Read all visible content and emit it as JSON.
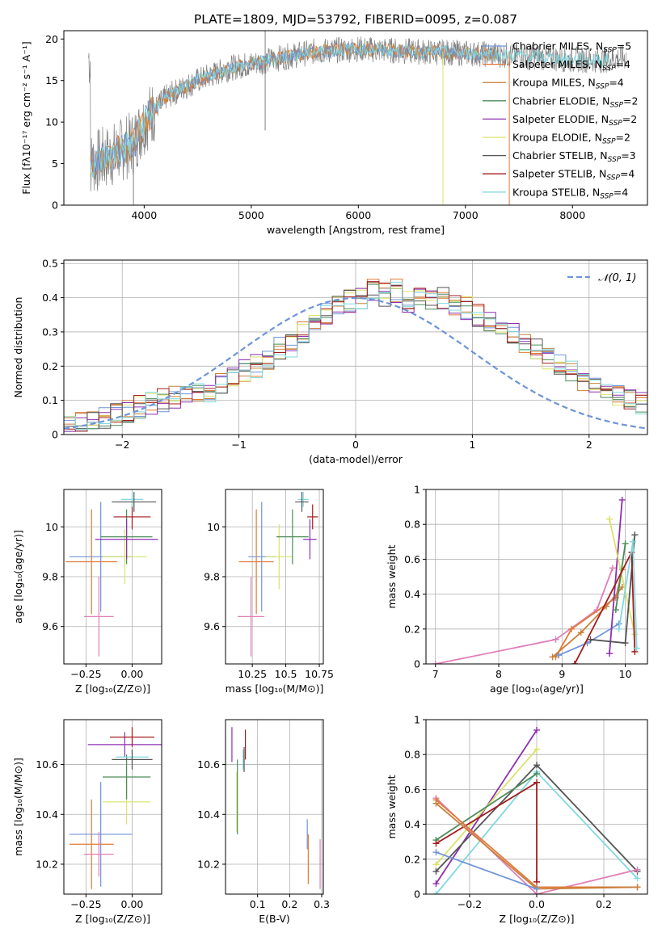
{
  "figure_title": "PLATE=1809, MJD=53792, FIBERID=0095, z=0.087",
  "colors": {
    "Chabrier MILES": "#6f94d8",
    "Salpeter MILES": "#e07b39",
    "Kroupa MILES": "#c8803b",
    "Chabrier ELODIE": "#4c8c59",
    "Salpeter ELODIE": "#8d2fb0",
    "Kroupa ELODIE": "#d9e36a",
    "Chabrier STELIB": "#555555",
    "Salpeter STELIB": "#a51c1c",
    "Kroupa STELIB": "#7fd9df",
    "data": "#808080",
    "pink": "#e07fb8",
    "grid": "#b0b0b0"
  },
  "chart_data": [
    {
      "id": "spectrum",
      "type": "line",
      "xlabel": "wavelength [Angstrom, rest frame]",
      "ylabel": "Flux [fλ10⁻¹⁷ erg cm⁻² s⁻¹ A⁻¹]",
      "xlim": [
        3250,
        8700
      ],
      "ylim": [
        0,
        21
      ],
      "xticks": [
        4000,
        5000,
        6000,
        7000,
        8000
      ],
      "yticks": [
        0,
        5,
        10,
        15,
        20
      ],
      "grid": false,
      "legend_position": "top-right",
      "legend": [
        {
          "label": "Chabrier MILES, N",
          "sub": "SSP",
          "tail": "=5"
        },
        {
          "label": "Salpeter MILES, N",
          "sub": "SSP",
          "tail": "=4"
        },
        {
          "label": "Kroupa MILES, N",
          "sub": "SSP",
          "tail": "=4"
        },
        {
          "label": "Chabrier ELODIE, N",
          "sub": "SSP",
          "tail": "=2"
        },
        {
          "label": "Salpeter ELODIE, N",
          "sub": "SSP",
          "tail": "=2"
        },
        {
          "label": "Kroupa ELODIE, N",
          "sub": "SSP",
          "tail": "=2"
        },
        {
          "label": "Chabrier STELIB, N",
          "sub": "SSP",
          "tail": "=3"
        },
        {
          "label": "Salpeter STELIB, N",
          "sub": "SSP",
          "tail": "=4"
        },
        {
          "label": "Kroupa STELIB, N",
          "sub": "SSP",
          "tail": "=4"
        }
      ],
      "continuum": {
        "x": [
          3500,
          3700,
          3900,
          4000,
          4200,
          4500,
          4800,
          5000,
          5300,
          5600,
          6000,
          6500,
          7000,
          7500,
          8000,
          8300,
          8500
        ],
        "y": [
          5,
          6,
          7.5,
          10,
          13,
          15,
          16.5,
          17,
          17.8,
          18.5,
          18.8,
          18.5,
          18.3,
          18,
          17.5,
          17.5,
          17.8
        ]
      },
      "spikes": [
        {
          "x": 5130,
          "y0": 9,
          "y1": 21
        },
        {
          "x": 6790,
          "y0": 0,
          "y1": 18.5
        },
        {
          "x": 7410,
          "y0": 0,
          "y1": 18.5
        },
        {
          "x": 3900,
          "y0": 0,
          "y1": 7
        }
      ]
    },
    {
      "id": "residuals",
      "type": "histogram",
      "xlabel": "(data-model)/error",
      "ylabel": "Normed distribution",
      "xlim": [
        -2.5,
        2.5
      ],
      "ylim": [
        0,
        0.51
      ],
      "xticks": [
        -2,
        -1,
        0,
        1,
        2
      ],
      "yticks": [
        0.0,
        0.1,
        0.2,
        0.3,
        0.4,
        0.5
      ],
      "grid": true,
      "legend": "𝒩(0, 1)",
      "bin_width": 0.1,
      "bin_start": -2.5,
      "hist_values": [
        0.03,
        0.03,
        0.04,
        0.05,
        0.06,
        0.07,
        0.08,
        0.09,
        0.1,
        0.11,
        0.11,
        0.12,
        0.13,
        0.15,
        0.17,
        0.19,
        0.2,
        0.22,
        0.25,
        0.26,
        0.3,
        0.32,
        0.35,
        0.37,
        0.39,
        0.4,
        0.42,
        0.41,
        0.42,
        0.39,
        0.4,
        0.39,
        0.4,
        0.38,
        0.37,
        0.35,
        0.33,
        0.31,
        0.29,
        0.27,
        0.25,
        0.22,
        0.2,
        0.18,
        0.16,
        0.15,
        0.13,
        0.12,
        0.1,
        0.09,
        0.08,
        0.07,
        0.06,
        0.05,
        0.05,
        0.04,
        0.04,
        0.03,
        0.03,
        0.03
      ],
      "jitter_seeds": [
        1,
        2,
        3,
        4,
        5,
        6,
        7,
        8,
        9
      ]
    },
    {
      "id": "z_age",
      "type": "errorbar",
      "xlabel": "Z [log₁₀(Z/Z⊙)]",
      "ylabel": "age  [log₁₀(age/yr)]",
      "xlim": [
        -0.37,
        0.16
      ],
      "ylim": [
        9.45,
        10.15
      ],
      "xticks": [
        -0.25,
        0.0
      ],
      "xticklabels": [
        "−0.25",
        "0.00"
      ],
      "yticks": [
        9.6,
        9.8,
        10.0
      ],
      "grid": true,
      "points": [
        {
          "series": "Chabrier MILES",
          "x": -0.17,
          "xerr": 0.17,
          "y": 9.88,
          "yerr": 0.22
        },
        {
          "series": "Salpeter MILES",
          "x": -0.22,
          "xerr": 0.14,
          "y": 9.86,
          "yerr": 0.21
        },
        {
          "series": "pink",
          "x": -0.18,
          "xerr": 0.08,
          "y": 9.64,
          "yerr": 0.16
        },
        {
          "series": "Kroupa ELODIE",
          "x": -0.04,
          "xerr": 0.12,
          "y": 9.88,
          "yerr": 0.11
        },
        {
          "series": "Chabrier ELODIE",
          "x": -0.03,
          "xerr": 0.14,
          "y": 9.96,
          "yerr": 0.11
        },
        {
          "series": "Salpeter ELODIE",
          "x": -0.03,
          "xerr": 0.17,
          "y": 9.95,
          "yerr": 0.08
        },
        {
          "series": "Salpeter STELIB",
          "x": 0.0,
          "xerr": 0.1,
          "y": 10.04,
          "yerr": 0.05
        },
        {
          "series": "Kroupa STELIB",
          "x": 0.0,
          "xerr": 0.06,
          "y": 10.11,
          "yerr": 0.03
        },
        {
          "series": "Chabrier STELIB",
          "x": 0.01,
          "xerr": 0.12,
          "y": 10.1,
          "yerr": 0.04
        }
      ]
    },
    {
      "id": "mass_age",
      "type": "errorbar",
      "xlabel": "mass [log₁₀(M/M⊙)]",
      "ylabel": "",
      "xlim": [
        10.05,
        10.78
      ],
      "ylim": [
        9.45,
        10.15
      ],
      "xticks": [
        10.25,
        10.5,
        10.75
      ],
      "yticks": [
        9.6,
        9.8,
        10.0
      ],
      "grid": true,
      "points": [
        {
          "series": "Chabrier MILES",
          "x": 10.32,
          "xerr": 0.1,
          "y": 9.88,
          "yerr": 0.22
        },
        {
          "series": "Salpeter MILES",
          "x": 10.28,
          "xerr": 0.13,
          "y": 9.86,
          "yerr": 0.21
        },
        {
          "series": "pink",
          "x": 10.24,
          "xerr": 0.1,
          "y": 9.64,
          "yerr": 0.16
        },
        {
          "series": "Kroupa ELODIE",
          "x": 10.45,
          "xerr": 0.1,
          "y": 9.88,
          "yerr": 0.13
        },
        {
          "series": "Chabrier ELODIE",
          "x": 10.55,
          "xerr": 0.12,
          "y": 9.96,
          "yerr": 0.11
        },
        {
          "series": "Salpeter ELODIE",
          "x": 10.68,
          "xerr": 0.05,
          "y": 9.95,
          "yerr": 0.08
        },
        {
          "series": "Salpeter STELIB",
          "x": 10.7,
          "xerr": 0.04,
          "y": 10.04,
          "yerr": 0.05
        },
        {
          "series": "Kroupa STELIB",
          "x": 10.63,
          "xerr": 0.04,
          "y": 10.11,
          "yerr": 0.03
        },
        {
          "series": "Chabrier STELIB",
          "x": 10.62,
          "xerr": 0.05,
          "y": 10.1,
          "yerr": 0.04
        }
      ]
    },
    {
      "id": "age_weight",
      "type": "line",
      "xlabel": "age  [log₁₀(age/yr)]",
      "ylabel": "mass weight",
      "xlim": [
        6.85,
        10.35
      ],
      "ylim": [
        0,
        1.0
      ],
      "xticks": [
        7,
        8,
        9,
        10
      ],
      "yticks": [
        0.0,
        0.2,
        0.4,
        0.6,
        0.8,
        1.0
      ],
      "grid": true,
      "series": [
        {
          "name": "pink",
          "x": [
            7.0,
            8.9,
            9.55,
            9.8
          ],
          "y": [
            0.0,
            0.14,
            0.31,
            0.55
          ]
        },
        {
          "name": "Salpeter MILES",
          "x": [
            8.9,
            9.15,
            9.85,
            9.95
          ],
          "y": [
            0.04,
            0.2,
            0.38,
            0.54
          ]
        },
        {
          "name": "Chabrier MILES",
          "x": [
            8.95,
            9.4,
            9.9
          ],
          "y": [
            0.05,
            0.12,
            0.23
          ]
        },
        {
          "name": "Kroupa MILES",
          "x": [
            8.85,
            9.3,
            9.7,
            9.95
          ],
          "y": [
            0.04,
            0.18,
            0.33,
            0.44
          ]
        },
        {
          "name": "Salpeter ELODIE",
          "x": [
            9.75,
            9.95
          ],
          "y": [
            0.06,
            0.94
          ]
        },
        {
          "name": "Kroupa ELODIE",
          "x": [
            9.75,
            10.15
          ],
          "y": [
            0.83,
            0.17
          ]
        },
        {
          "name": "Chabrier ELODIE",
          "x": [
            9.85,
            10.0
          ],
          "y": [
            0.31,
            0.69
          ]
        },
        {
          "name": "Chabrier STELIB",
          "x": [
            9.45,
            10.0,
            10.15
          ],
          "y": [
            0.14,
            0.12,
            0.74
          ]
        },
        {
          "name": "Salpeter STELIB",
          "x": [
            9.2,
            10.1,
            10.15
          ],
          "y": [
            0.0,
            0.64,
            0.07
          ]
        },
        {
          "name": "Kroupa STELIB",
          "x": [
            9.9,
            10.12,
            10.18
          ],
          "y": [
            0.2,
            0.7,
            0.09
          ]
        }
      ]
    },
    {
      "id": "z_mass",
      "type": "errorbar",
      "xlabel": "Z [log₁₀(Z/Z⊙)]",
      "ylabel": "mass [log₁₀(M/M⊙)]",
      "xlim": [
        -0.37,
        0.16
      ],
      "ylim": [
        10.08,
        10.78
      ],
      "xticks": [
        -0.25,
        0.0
      ],
      "xticklabels": [
        "−0.25",
        "0.00"
      ],
      "yticks": [
        10.2,
        10.4,
        10.6
      ],
      "grid": true,
      "points": [
        {
          "series": "Chabrier MILES",
          "x": -0.17,
          "xerr": 0.17,
          "y": 10.32,
          "yerr": 0.21
        },
        {
          "series": "Salpeter MILES",
          "x": -0.22,
          "xerr": 0.12,
          "y": 10.28,
          "yerr": 0.18
        },
        {
          "series": "pink",
          "x": -0.18,
          "xerr": 0.08,
          "y": 10.24,
          "yerr": 0.09
        },
        {
          "series": "Kroupa ELODIE",
          "x": -0.03,
          "xerr": 0.13,
          "y": 10.45,
          "yerr": 0.09
        },
        {
          "series": "Chabrier ELODIE",
          "x": -0.03,
          "xerr": 0.13,
          "y": 10.55,
          "yerr": 0.09
        },
        {
          "series": "Salpeter ELODIE",
          "x": -0.04,
          "xerr": 0.2,
          "y": 10.68,
          "yerr": 0.05
        },
        {
          "series": "Salpeter STELIB",
          "x": 0.0,
          "xerr": 0.12,
          "y": 10.71,
          "yerr": 0.04
        },
        {
          "series": "Kroupa STELIB",
          "x": 0.0,
          "xerr": 0.09,
          "y": 10.63,
          "yerr": 0.03
        },
        {
          "series": "Chabrier STELIB",
          "x": 0.0,
          "xerr": 0.11,
          "y": 10.62,
          "yerr": 0.04
        }
      ]
    },
    {
      "id": "ebv_mass",
      "type": "errorbar",
      "xlabel": "E(B-V)",
      "ylabel": "",
      "xlim": [
        0.0,
        0.305
      ],
      "ylim": [
        10.08,
        10.78
      ],
      "xticks": [
        0.1,
        0.2,
        0.3
      ],
      "yticks": [
        10.2,
        10.4,
        10.6
      ],
      "grid": true,
      "points": [
        {
          "series": "Salpeter ELODIE",
          "x": 0.02,
          "xerr": 0.0,
          "y": 10.68,
          "yerr": 0.07
        },
        {
          "series": "Kroupa ELODIE",
          "x": 0.035,
          "xerr": 0.0,
          "y": 10.45,
          "yerr": 0.12
        },
        {
          "series": "Chabrier ELODIE",
          "x": 0.037,
          "xerr": 0.0,
          "y": 10.47,
          "yerr": 0.15
        },
        {
          "series": "Kroupa STELIB",
          "x": 0.055,
          "xerr": 0.0,
          "y": 10.62,
          "yerr": 0.04
        },
        {
          "series": "Chabrier STELIB",
          "x": 0.058,
          "xerr": 0.0,
          "y": 10.62,
          "yerr": 0.05
        },
        {
          "series": "Salpeter STELIB",
          "x": 0.062,
          "xerr": 0.0,
          "y": 10.68,
          "yerr": 0.06
        },
        {
          "series": "Chabrier MILES",
          "x": 0.255,
          "xerr": 0.0,
          "y": 10.32,
          "yerr": 0.06
        },
        {
          "series": "Salpeter MILES",
          "x": 0.258,
          "xerr": 0.0,
          "y": 10.22,
          "yerr": 0.1
        },
        {
          "series": "pink",
          "x": 0.295,
          "xerr": 0.0,
          "y": 10.2,
          "yerr": 0.1
        }
      ]
    },
    {
      "id": "z_weight",
      "type": "line",
      "xlabel": "Z [log₁₀(Z/Z⊙)]",
      "ylabel": "mass weight",
      "xlim": [
        -0.33,
        0.33
      ],
      "ylim": [
        0,
        1.0
      ],
      "xticks": [
        -0.2,
        0.0,
        0.2
      ],
      "xticklabels": [
        "−0.2",
        "0.0",
        "0.2"
      ],
      "yticks": [
        0.0,
        0.2,
        0.4,
        0.6,
        0.8,
        1.0
      ],
      "grid": true,
      "series": [
        {
          "name": "Salpeter ELODIE",
          "x": [
            -0.3,
            0.0
          ],
          "y": [
            0.06,
            0.94
          ]
        },
        {
          "name": "Kroupa ELODIE",
          "x": [
            -0.3,
            0.0
          ],
          "y": [
            0.17,
            0.83
          ]
        },
        {
          "name": "Chabrier STELIB",
          "x": [
            -0.3,
            0.0,
            0.3
          ],
          "y": [
            0.13,
            0.74,
            0.13
          ]
        },
        {
          "name": "Kroupa STELIB",
          "x": [
            -0.3,
            0.0,
            0.3
          ],
          "y": [
            0.0,
            0.7,
            0.09
          ]
        },
        {
          "name": "Chabrier ELODIE",
          "x": [
            -0.3,
            0.0
          ],
          "y": [
            0.31,
            0.69
          ]
        },
        {
          "name": "Salpeter STELIB",
          "x": [
            -0.3,
            0.0,
            0.0
          ],
          "y": [
            0.29,
            0.64,
            0.07
          ]
        },
        {
          "name": "pink",
          "x": [
            -0.3,
            0.0,
            0.3
          ],
          "y": [
            0.55,
            0.0,
            0.14
          ]
        },
        {
          "name": "Salpeter MILES",
          "x": [
            -0.3,
            0.0,
            0.3
          ],
          "y": [
            0.54,
            0.04,
            0.04
          ]
        },
        {
          "name": "Kroupa MILES",
          "x": [
            -0.3,
            0.0,
            0.3
          ],
          "y": [
            0.52,
            0.03,
            0.04
          ]
        },
        {
          "name": "Chabrier MILES",
          "x": [
            -0.3,
            0.0
          ],
          "y": [
            0.24,
            0.03
          ]
        }
      ]
    }
  ]
}
